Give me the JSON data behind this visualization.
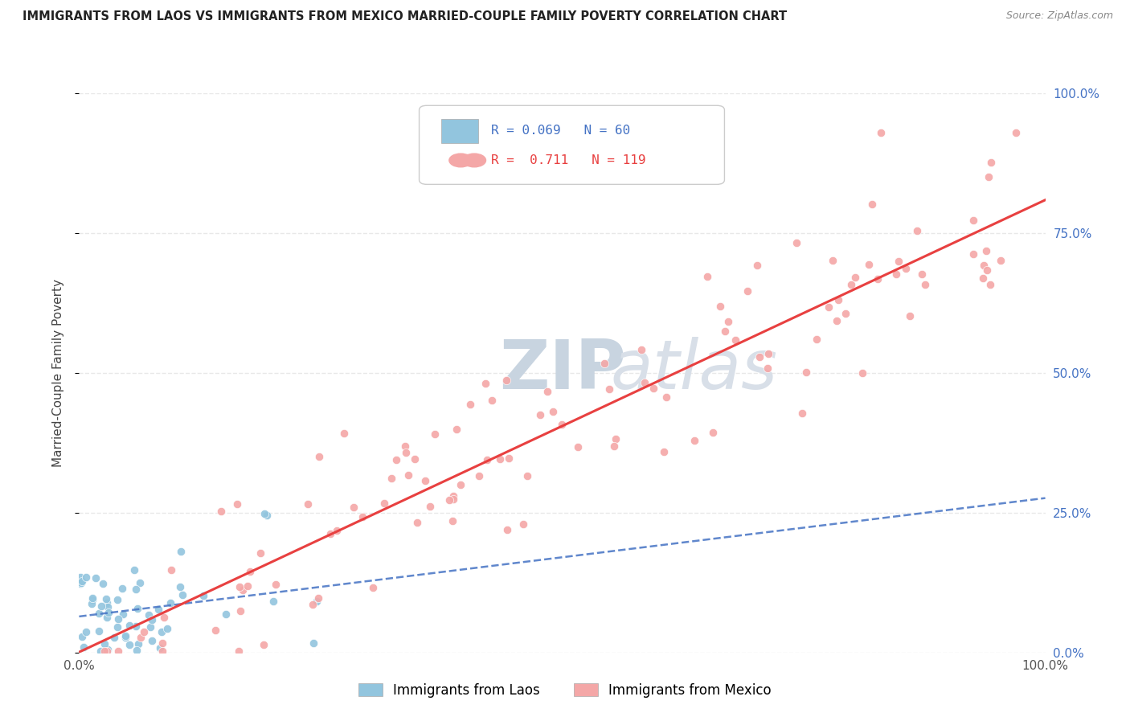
{
  "title": "IMMIGRANTS FROM LAOS VS IMMIGRANTS FROM MEXICO MARRIED-COUPLE FAMILY POVERTY CORRELATION CHART",
  "source": "Source: ZipAtlas.com",
  "ylabel": "Married-Couple Family Poverty",
  "xlim": [
    0.0,
    1.0
  ],
  "ylim": [
    0.0,
    1.0
  ],
  "xtick_positions": [
    0.0,
    1.0
  ],
  "xtick_labels": [
    "0.0%",
    "100.0%"
  ],
  "ytick_positions": [
    0.0,
    0.25,
    0.5,
    0.75,
    1.0
  ],
  "ytick_labels": [
    "0.0%",
    "25.0%",
    "50.0%",
    "75.0%",
    "100.0%"
  ],
  "color_laos": "#92c5de",
  "color_mexico": "#f4a7a7",
  "trendline_laos_color": "#4472c4",
  "trendline_mexico_color": "#e84040",
  "background_color": "#ffffff",
  "grid_color": "#e8e8e8",
  "legend_r1": "0.069",
  "legend_n1": "60",
  "legend_r2": "0.711",
  "legend_n2": "119",
  "label_laos": "Immigrants from Laos",
  "label_mexico": "Immigrants from Mexico",
  "watermark_text": "ZIPatlas",
  "watermark_zip": "ZIP",
  "watermark_atlas": "atlas"
}
